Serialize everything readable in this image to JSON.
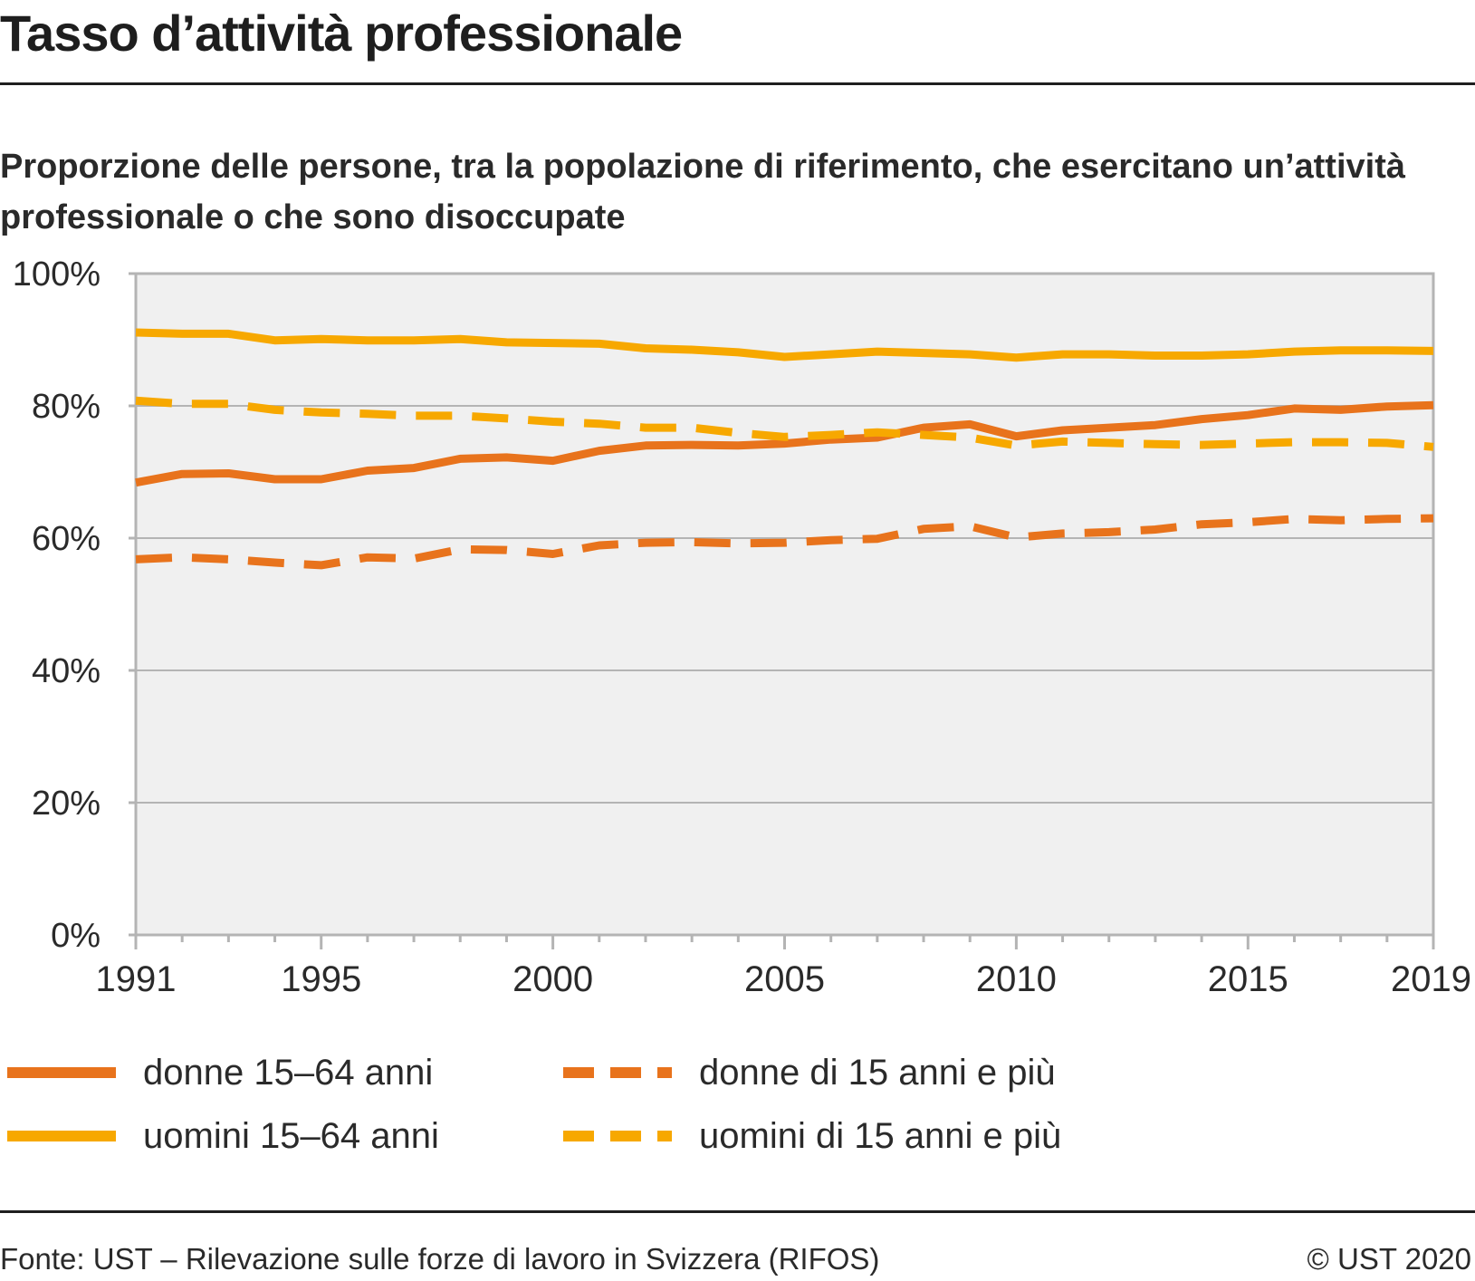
{
  "title": "Tasso d’attività professionale",
  "subtitle": "Proporzione delle persone, tra la popolazione di riferimento, che esercitano un’attività professionale o che sono disoccupate",
  "source": "Fonte: UST – Rilevazione sulle forze di lavoro in Svizzera (RIFOS)",
  "copyright": "© UST 2020",
  "legend": [
    {
      "label": "donne 15–64 anni",
      "color": "#e8731c",
      "style": "solid"
    },
    {
      "label": "donne di 15 anni e più",
      "color": "#e8731c",
      "style": "dashed"
    },
    {
      "label": "uomini 15–64 anni",
      "color": "#f7a800",
      "style": "solid"
    },
    {
      "label": "uomini di 15 anni e più",
      "color": "#f7a800",
      "style": "dashed"
    }
  ],
  "chart_data": {
    "type": "line",
    "title": "Tasso d’attività professionale",
    "subtitle": "Proporzione delle persone, tra la popolazione di riferimento, che esercitano un’attività professionale o che sono disoccupate",
    "x": [
      1991,
      1992,
      1993,
      1994,
      1995,
      1996,
      1997,
      1998,
      1999,
      2000,
      2001,
      2002,
      2003,
      2004,
      2005,
      2006,
      2007,
      2008,
      2009,
      2010,
      2011,
      2012,
      2013,
      2014,
      2015,
      2016,
      2017,
      2018,
      2019
    ],
    "x_tick_labels": [
      "1991",
      "1995",
      "2000",
      "2005",
      "2010",
      "2015",
      "2019"
    ],
    "x_ticks": [
      1991,
      1995,
      2000,
      2005,
      2010,
      2015,
      2019
    ],
    "xlim": [
      1991,
      2019
    ],
    "y_tick_labels": [
      "0%",
      "20%",
      "40%",
      "60%",
      "80%",
      "100%"
    ],
    "y_ticks": [
      0,
      20,
      40,
      60,
      80,
      100
    ],
    "ylim": [
      0,
      100
    ],
    "grid": true,
    "legend_position": "bottom",
    "series": [
      {
        "name": "donne 15–64 anni",
        "color": "#e8731c",
        "style": "solid",
        "values": [
          68.4,
          69.7,
          69.8,
          68.9,
          68.9,
          70.2,
          70.6,
          72.0,
          72.2,
          71.7,
          73.2,
          74.0,
          74.1,
          74.0,
          74.3,
          74.9,
          75.2,
          76.7,
          77.2,
          75.4,
          76.3,
          76.7,
          77.1,
          78.0,
          78.6,
          79.6,
          79.4,
          79.9,
          80.1
        ]
      },
      {
        "name": "uomini 15–64 anni",
        "color": "#f7a800",
        "style": "solid",
        "values": [
          91.1,
          90.9,
          90.9,
          89.9,
          90.1,
          89.9,
          89.9,
          90.1,
          89.6,
          89.5,
          89.4,
          88.7,
          88.5,
          88.1,
          87.4,
          87.8,
          88.2,
          88.0,
          87.8,
          87.3,
          87.8,
          87.8,
          87.6,
          87.6,
          87.8,
          88.2,
          88.4,
          88.4,
          88.3
        ]
      },
      {
        "name": "donne di 15 anni e più",
        "color": "#e8731c",
        "style": "dashed",
        "values": [
          56.8,
          57.1,
          56.8,
          56.3,
          55.9,
          57.1,
          56.9,
          58.3,
          58.2,
          57.6,
          58.9,
          59.3,
          59.4,
          59.2,
          59.3,
          59.7,
          59.9,
          61.4,
          61.8,
          60.1,
          60.7,
          60.9,
          61.3,
          62.1,
          62.4,
          62.9,
          62.7,
          62.9,
          63.0
        ]
      },
      {
        "name": "uomini di 15 anni e più",
        "color": "#f7a800",
        "style": "dashed",
        "values": [
          80.8,
          80.3,
          80.3,
          79.4,
          79.0,
          78.8,
          78.5,
          78.5,
          78.1,
          77.6,
          77.3,
          76.7,
          76.7,
          75.9,
          75.3,
          75.6,
          76.0,
          75.6,
          75.2,
          74.0,
          74.6,
          74.4,
          74.2,
          74.1,
          74.3,
          74.5,
          74.5,
          74.4,
          73.8
        ]
      }
    ]
  }
}
